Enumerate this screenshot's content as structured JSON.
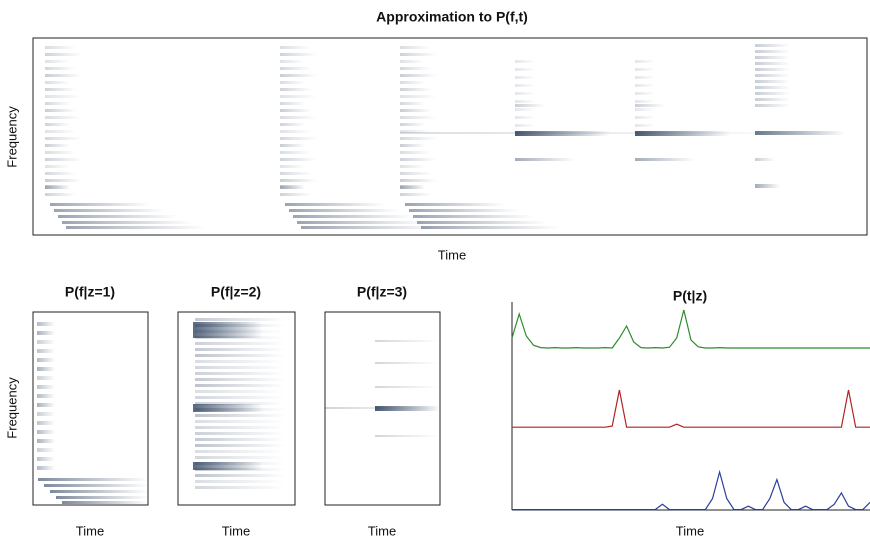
{
  "figure": {
    "title": "Approximation to P(f,t)",
    "top_x_label": "Time",
    "top_y_label": "Frequency",
    "bottom_y_label": "Frequency",
    "panels": [
      {
        "title": "P(f|z=1)",
        "x_label": "Time"
      },
      {
        "title": "P(f|z=2)",
        "x_label": "Time"
      },
      {
        "title": "P(f|z=3)",
        "x_label": "Time"
      }
    ]
  },
  "chart_data": {
    "type": "line",
    "title": "P(t|z)",
    "x_label": "Time",
    "x": [
      0,
      2,
      4,
      6,
      8,
      10,
      12,
      14,
      16,
      18,
      20,
      22,
      24,
      26,
      28,
      30,
      32,
      34,
      36,
      38,
      40,
      42,
      44,
      46,
      48,
      50,
      52,
      54,
      56,
      58,
      60,
      62,
      64,
      66,
      68,
      70,
      72,
      74,
      76,
      78,
      80,
      82,
      84,
      86,
      88,
      90,
      92,
      94,
      96,
      98,
      100
    ],
    "series": [
      {
        "color": "#2e8b2e",
        "values": [
          0.3,
          0.9,
          0.35,
          0.12,
          0.06,
          0.05,
          0.06,
          0.05,
          0.05,
          0.06,
          0.05,
          0.05,
          0.05,
          0.06,
          0.05,
          0.3,
          0.6,
          0.2,
          0.06,
          0.05,
          0.06,
          0.05,
          0.07,
          0.3,
          1.0,
          0.25,
          0.08,
          0.05,
          0.05,
          0.06,
          0.05,
          0.05,
          0.05,
          0.05,
          0.05,
          0.05,
          0.05,
          0.05,
          0.05,
          0.05,
          0.05,
          0.05,
          0.05,
          0.05,
          0.05,
          0.05,
          0.05,
          0.05,
          0.05,
          0.05,
          0.05
        ]
      },
      {
        "color": "#b22222",
        "values": [
          0.02,
          0.02,
          0.02,
          0.02,
          0.02,
          0.02,
          0.02,
          0.02,
          0.02,
          0.02,
          0.02,
          0.02,
          0.02,
          0.02,
          0.05,
          1.0,
          0.02,
          0.02,
          0.02,
          0.02,
          0.02,
          0.02,
          0.02,
          0.1,
          0.02,
          0.02,
          0.02,
          0.02,
          0.02,
          0.02,
          0.02,
          0.02,
          0.02,
          0.02,
          0.02,
          0.02,
          0.02,
          0.02,
          0.02,
          0.02,
          0.02,
          0.02,
          0.02,
          0.02,
          0.02,
          0.02,
          0.02,
          1.0,
          0.02,
          0.02,
          0.02
        ]
      },
      {
        "color": "#2a3f9a",
        "values": [
          0.01,
          0.01,
          0.01,
          0.01,
          0.01,
          0.01,
          0.01,
          0.01,
          0.01,
          0.01,
          0.01,
          0.01,
          0.01,
          0.01,
          0.01,
          0.01,
          0.01,
          0.01,
          0.01,
          0.01,
          0.01,
          0.15,
          0.01,
          0.01,
          0.01,
          0.01,
          0.01,
          0.01,
          0.3,
          1.0,
          0.3,
          0.01,
          0.01,
          0.1,
          0.01,
          0.01,
          0.3,
          0.8,
          0.2,
          0.01,
          0.01,
          0.1,
          0.01,
          0.01,
          0.01,
          0.15,
          0.45,
          0.1,
          0.01,
          0.01,
          0.2
        ]
      }
    ]
  }
}
